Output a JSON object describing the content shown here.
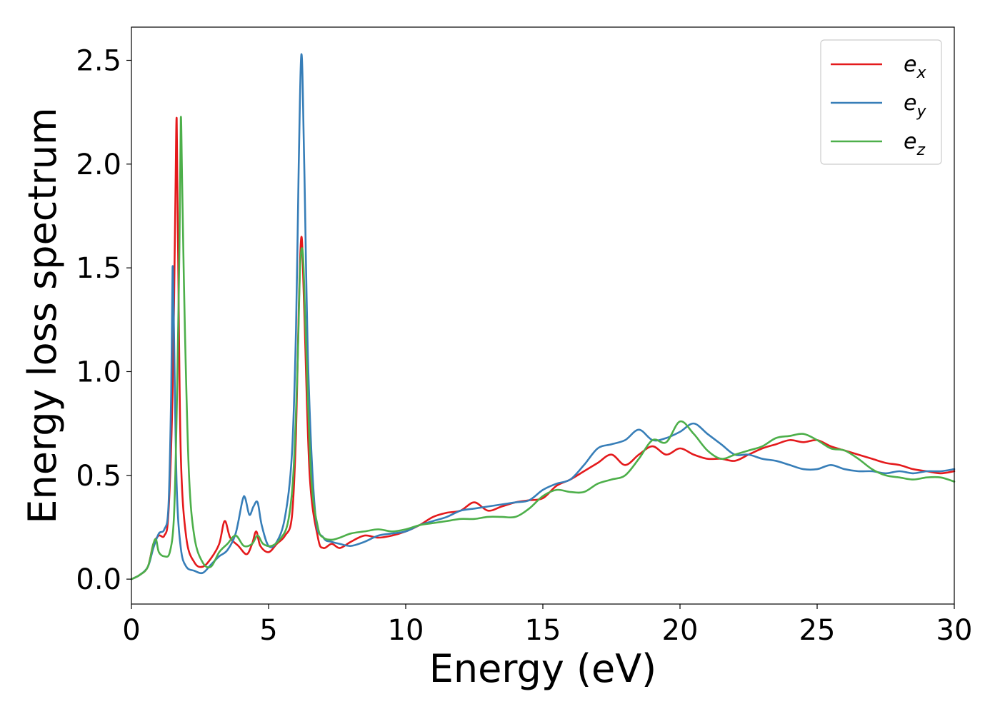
{
  "chart_data": {
    "type": "line",
    "title": "",
    "xlabel": "Energy (eV)",
    "ylabel": "Energy loss spectrum",
    "xlim": [
      0,
      30
    ],
    "ylim": [
      -0.12,
      2.66
    ],
    "xticks": [
      0,
      5,
      10,
      15,
      20,
      25,
      30
    ],
    "yticks": [
      0.0,
      0.5,
      1.0,
      1.5,
      2.0,
      2.5
    ],
    "xtick_labels": [
      "0",
      "5",
      "10",
      "15",
      "20",
      "25",
      "30"
    ],
    "ytick_labels": [
      "0.0",
      "0.5",
      "1.0",
      "1.5",
      "2.0",
      "2.5"
    ],
    "grid": false,
    "legend_position": "top-right",
    "series": [
      {
        "name": "e_x",
        "legend_base": "e",
        "legend_sub": "x",
        "color": "#e41a1c",
        "x": [
          0,
          0.3,
          0.6,
          0.8,
          1.0,
          1.2,
          1.35,
          1.5,
          1.6,
          1.65,
          1.7,
          1.8,
          2.0,
          2.3,
          2.6,
          2.9,
          3.2,
          3.4,
          3.6,
          3.9,
          4.2,
          4.4,
          4.55,
          4.7,
          5.0,
          5.3,
          5.6,
          5.85,
          6.0,
          6.1,
          6.2,
          6.3,
          6.5,
          6.8,
          7.0,
          7.3,
          7.6,
          8.0,
          8.5,
          9.0,
          9.5,
          10.0,
          10.5,
          11.0,
          11.5,
          12.0,
          12.5,
          13.0,
          13.5,
          14.0,
          14.5,
          15.0,
          15.5,
          16.0,
          16.5,
          17.0,
          17.5,
          18.0,
          18.5,
          19.0,
          19.5,
          20.0,
          20.5,
          21.0,
          21.5,
          22.0,
          22.5,
          23.0,
          23.5,
          24.0,
          24.5,
          25.0,
          25.5,
          26.0,
          26.5,
          27.0,
          27.5,
          28.0,
          28.5,
          29.0,
          29.5,
          30.0
        ],
        "y": [
          0.0,
          0.02,
          0.06,
          0.17,
          0.21,
          0.21,
          0.32,
          0.9,
          1.8,
          2.22,
          1.6,
          0.6,
          0.2,
          0.08,
          0.06,
          0.1,
          0.17,
          0.28,
          0.2,
          0.16,
          0.12,
          0.17,
          0.23,
          0.16,
          0.13,
          0.17,
          0.21,
          0.3,
          0.7,
          1.3,
          1.65,
          1.3,
          0.5,
          0.2,
          0.15,
          0.17,
          0.15,
          0.18,
          0.21,
          0.2,
          0.21,
          0.23,
          0.26,
          0.3,
          0.32,
          0.33,
          0.37,
          0.33,
          0.35,
          0.37,
          0.38,
          0.39,
          0.45,
          0.48,
          0.52,
          0.56,
          0.6,
          0.55,
          0.6,
          0.64,
          0.6,
          0.63,
          0.6,
          0.58,
          0.58,
          0.57,
          0.6,
          0.63,
          0.65,
          0.67,
          0.66,
          0.67,
          0.64,
          0.62,
          0.6,
          0.58,
          0.56,
          0.55,
          0.53,
          0.52,
          0.51,
          0.52
        ]
      },
      {
        "name": "e_y",
        "legend_base": "e",
        "legend_sub": "y",
        "color": "#377eb8",
        "x": [
          0,
          0.3,
          0.6,
          0.8,
          1.0,
          1.2,
          1.35,
          1.45,
          1.5,
          1.55,
          1.65,
          1.8,
          2.0,
          2.3,
          2.6,
          2.9,
          3.2,
          3.5,
          3.8,
          4.05,
          4.15,
          4.3,
          4.45,
          4.6,
          4.75,
          5.0,
          5.3,
          5.6,
          5.85,
          6.0,
          6.1,
          6.2,
          6.3,
          6.45,
          6.7,
          7.0,
          7.3,
          7.6,
          8.0,
          8.5,
          9.0,
          9.5,
          10.0,
          10.5,
          11.0,
          11.5,
          12.0,
          12.5,
          13.0,
          13.5,
          14.0,
          14.5,
          15.0,
          15.5,
          16.0,
          16.5,
          17.0,
          17.5,
          18.0,
          18.5,
          19.0,
          19.5,
          20.0,
          20.5,
          21.0,
          21.5,
          22.0,
          22.5,
          23.0,
          23.5,
          24.0,
          24.5,
          25.0,
          25.5,
          26.0,
          26.5,
          27.0,
          27.5,
          28.0,
          28.5,
          29.0,
          29.5,
          30.0
        ],
        "y": [
          0.0,
          0.02,
          0.06,
          0.15,
          0.22,
          0.24,
          0.35,
          0.9,
          1.5,
          1.2,
          0.45,
          0.15,
          0.06,
          0.04,
          0.03,
          0.07,
          0.11,
          0.14,
          0.22,
          0.38,
          0.39,
          0.31,
          0.35,
          0.37,
          0.26,
          0.16,
          0.18,
          0.3,
          0.6,
          1.2,
          2.0,
          2.53,
          2.0,
          1.0,
          0.32,
          0.2,
          0.18,
          0.17,
          0.16,
          0.18,
          0.21,
          0.22,
          0.23,
          0.26,
          0.28,
          0.3,
          0.33,
          0.34,
          0.35,
          0.36,
          0.37,
          0.38,
          0.43,
          0.46,
          0.48,
          0.55,
          0.63,
          0.65,
          0.67,
          0.72,
          0.67,
          0.68,
          0.71,
          0.75,
          0.7,
          0.65,
          0.6,
          0.6,
          0.58,
          0.57,
          0.55,
          0.53,
          0.53,
          0.55,
          0.53,
          0.52,
          0.52,
          0.51,
          0.52,
          0.51,
          0.52,
          0.52,
          0.53
        ]
      },
      {
        "name": "e_z",
        "legend_base": "e",
        "legend_sub": "z",
        "color": "#4daf4a",
        "x": [
          0,
          0.3,
          0.6,
          0.8,
          0.9,
          1.0,
          1.2,
          1.4,
          1.55,
          1.65,
          1.75,
          1.8,
          1.85,
          1.95,
          2.1,
          2.3,
          2.6,
          2.9,
          3.2,
          3.5,
          3.8,
          4.1,
          4.4,
          4.6,
          4.8,
          5.1,
          5.4,
          5.7,
          5.9,
          6.05,
          6.15,
          6.25,
          6.35,
          6.55,
          6.8,
          7.0,
          7.3,
          7.6,
          8.0,
          8.5,
          9.0,
          9.5,
          10.0,
          10.5,
          11.0,
          11.5,
          12.0,
          12.5,
          13.0,
          13.5,
          14.0,
          14.5,
          15.0,
          15.5,
          16.0,
          16.5,
          17.0,
          17.5,
          18.0,
          18.5,
          19.0,
          19.5,
          20.0,
          20.5,
          21.0,
          21.5,
          22.0,
          22.5,
          23.0,
          23.5,
          24.0,
          24.5,
          25.0,
          25.5,
          26.0,
          26.5,
          27.0,
          27.5,
          28.0,
          28.5,
          29.0,
          29.5,
          30.0
        ],
        "y": [
          0.0,
          0.02,
          0.06,
          0.17,
          0.19,
          0.13,
          0.11,
          0.13,
          0.3,
          0.8,
          1.6,
          2.22,
          1.9,
          1.2,
          0.5,
          0.2,
          0.08,
          0.06,
          0.13,
          0.17,
          0.21,
          0.16,
          0.17,
          0.21,
          0.17,
          0.16,
          0.19,
          0.27,
          0.5,
          1.0,
          1.5,
          1.57,
          1.2,
          0.5,
          0.25,
          0.2,
          0.19,
          0.2,
          0.22,
          0.23,
          0.24,
          0.23,
          0.24,
          0.26,
          0.27,
          0.28,
          0.29,
          0.29,
          0.3,
          0.3,
          0.3,
          0.34,
          0.4,
          0.43,
          0.42,
          0.42,
          0.46,
          0.48,
          0.5,
          0.58,
          0.67,
          0.66,
          0.76,
          0.7,
          0.62,
          0.58,
          0.6,
          0.62,
          0.64,
          0.68,
          0.69,
          0.7,
          0.67,
          0.63,
          0.62,
          0.58,
          0.53,
          0.5,
          0.49,
          0.48,
          0.49,
          0.49,
          0.47
        ]
      }
    ]
  }
}
